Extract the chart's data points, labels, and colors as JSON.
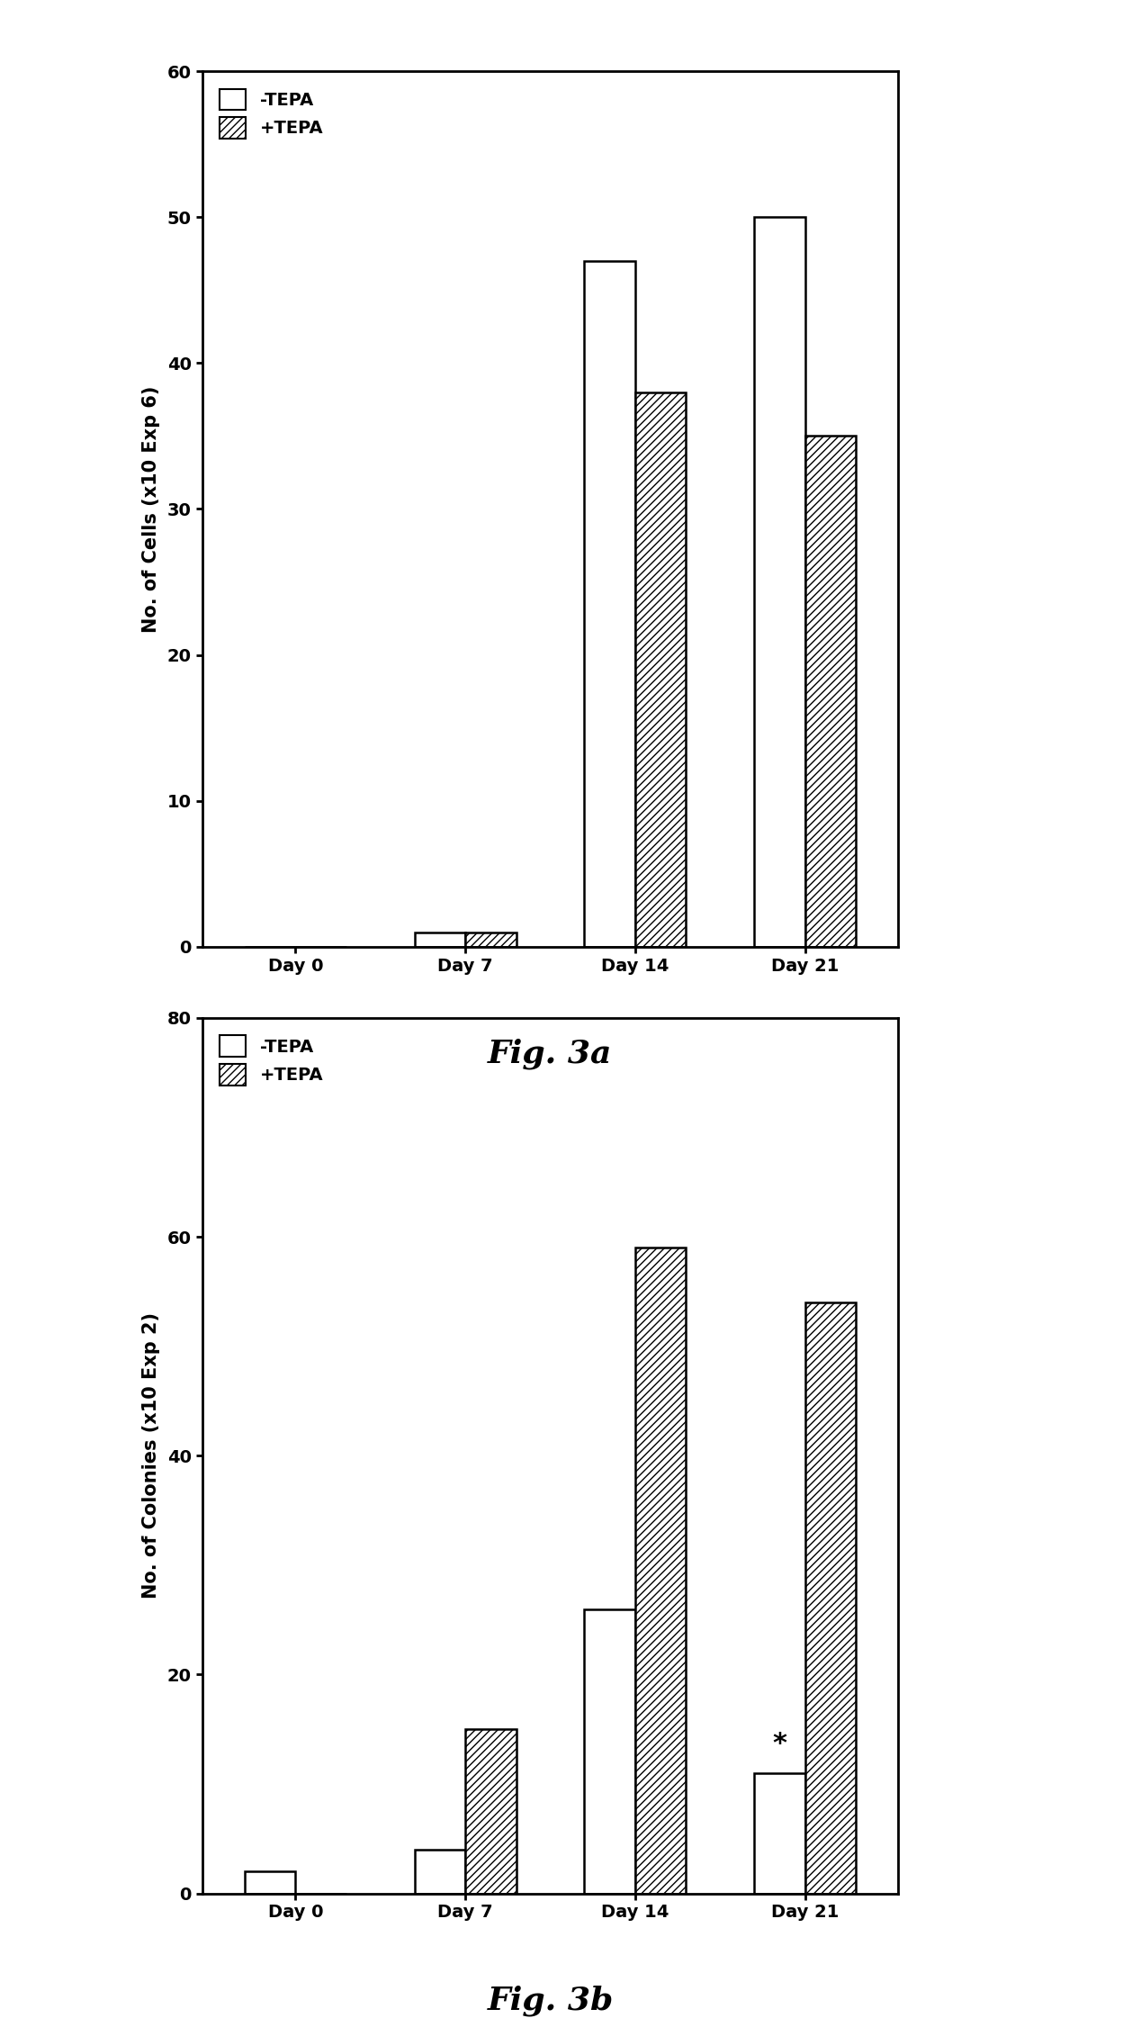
{
  "fig3a": {
    "categories": [
      "Day 0",
      "Day 7",
      "Day 14",
      "Day 21"
    ],
    "minus_tepa": [
      0,
      1,
      47,
      50
    ],
    "plus_tepa": [
      0,
      1,
      38,
      35
    ],
    "ylabel": "No. of Cells (x10 Exp 6)",
    "ylim": [
      0,
      60
    ],
    "yticks": [
      0,
      10,
      20,
      30,
      40,
      50,
      60
    ],
    "title": "Fig. 3a"
  },
  "fig3b": {
    "categories": [
      "Day 0",
      "Day 7",
      "Day 14",
      "Day 21"
    ],
    "minus_tepa": [
      2,
      4,
      26,
      11
    ],
    "plus_tepa": [
      0,
      15,
      59,
      54
    ],
    "ylabel": "No. of Colonies (x10 Exp 2)",
    "ylim": [
      0,
      80
    ],
    "yticks": [
      0,
      20,
      40,
      60,
      80
    ],
    "title": "Fig. 3b"
  },
  "bar_width": 0.3,
  "legend_labels": [
    "-TEPA",
    "+TEPA"
  ],
  "hatch_pattern": "////",
  "background_color": "white",
  "title_fontsize": 26,
  "axis_label_fontsize": 15,
  "tick_fontsize": 14,
  "legend_fontsize": 14
}
